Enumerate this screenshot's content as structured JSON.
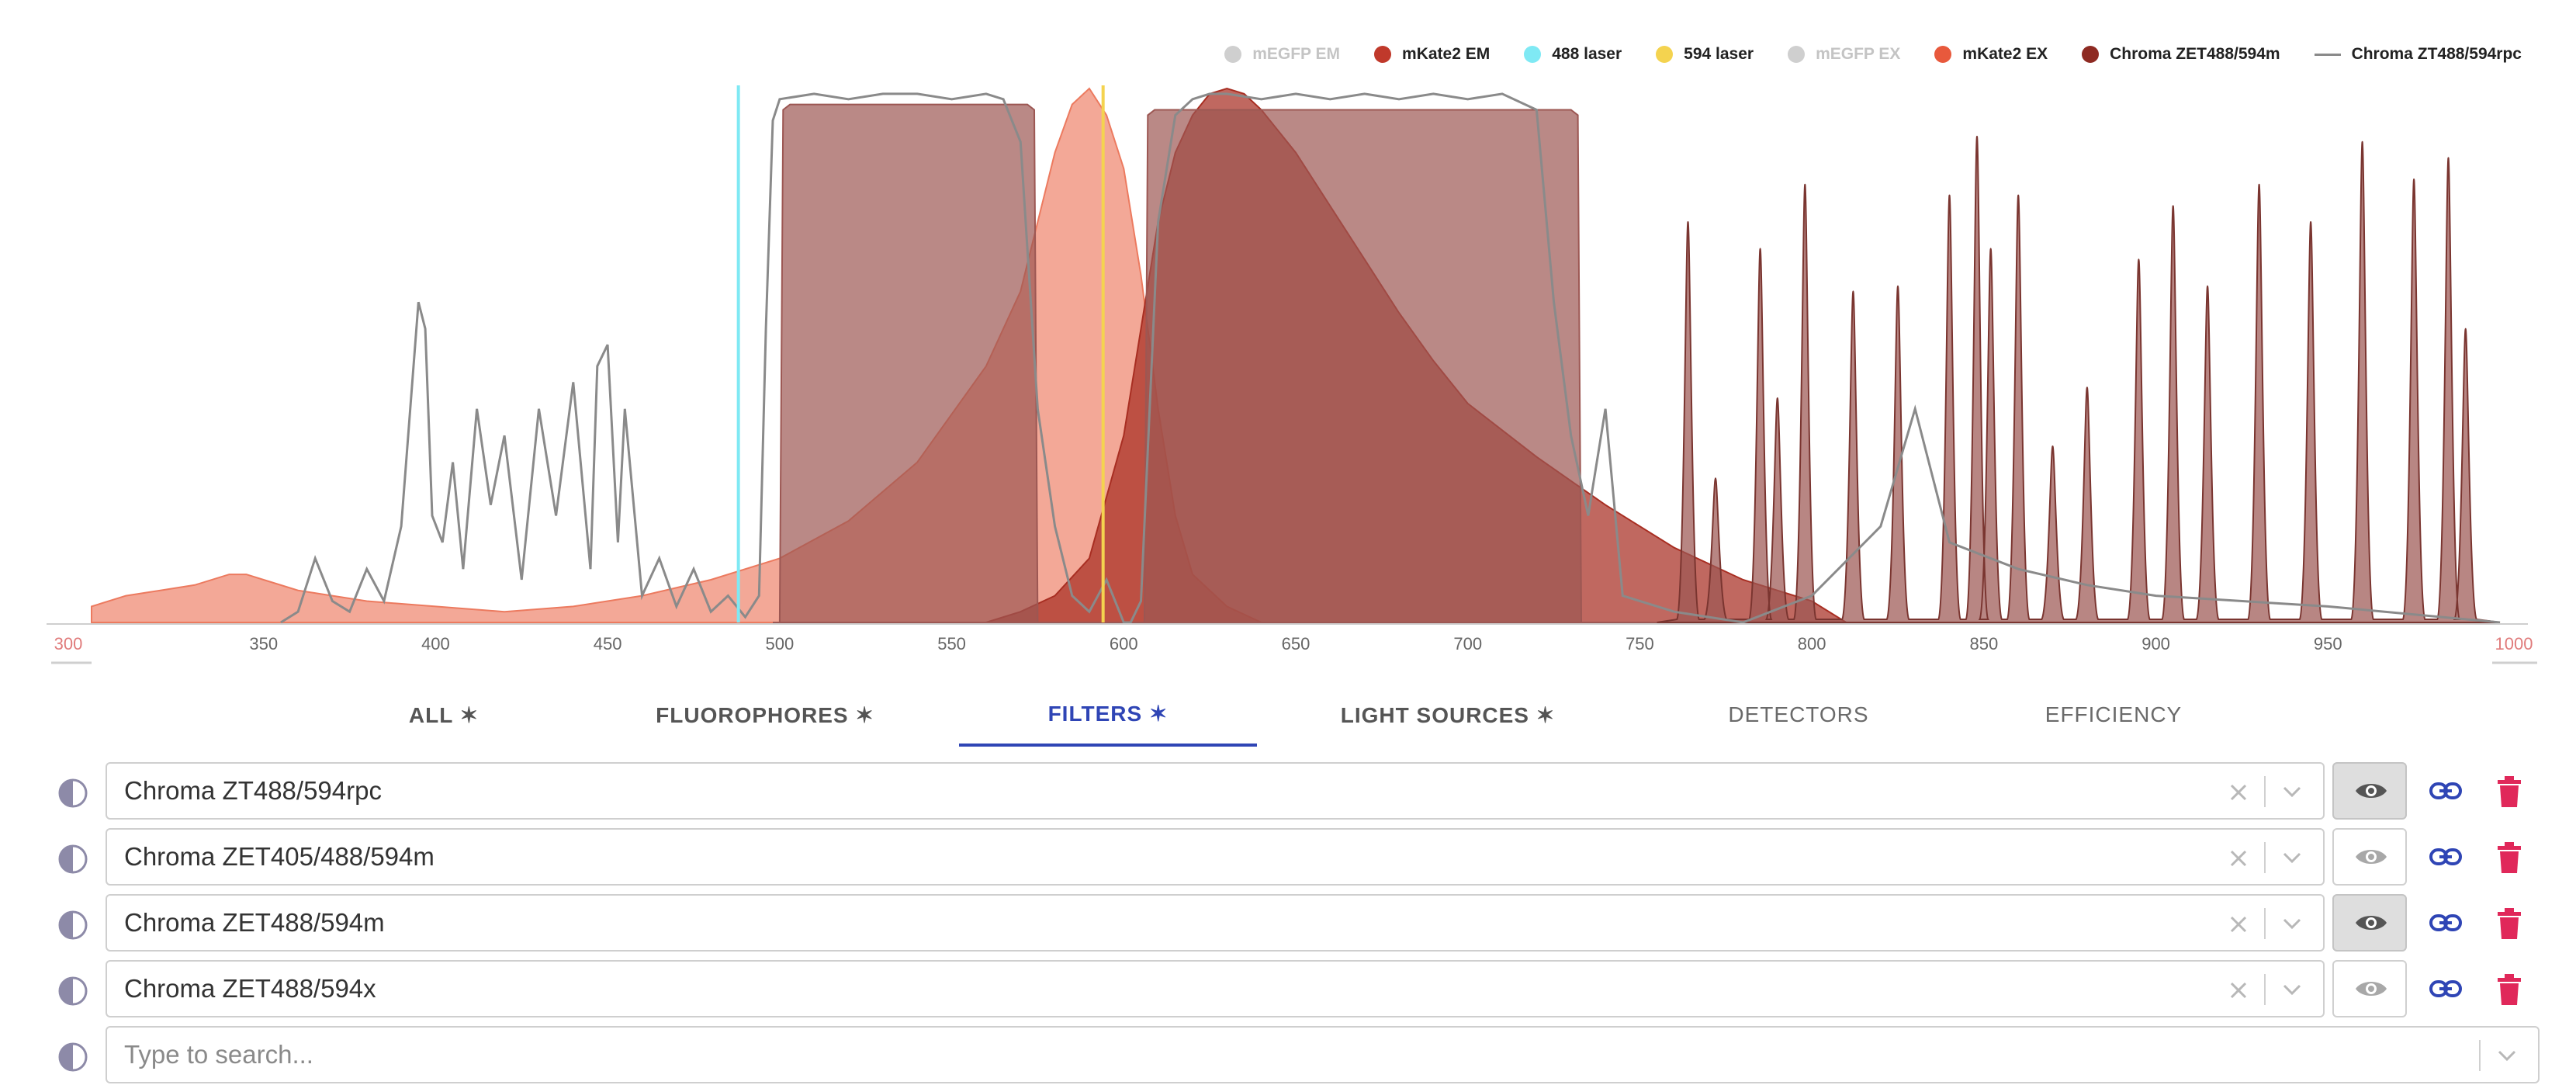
{
  "legend": [
    {
      "label": "mEGFP EM",
      "color": "#cfcfcf",
      "dim": true,
      "kind": "dot"
    },
    {
      "label": "mKate2 EM",
      "color": "#c0392b",
      "dim": false,
      "kind": "dot"
    },
    {
      "label": "488 laser",
      "color": "#7fe9f4",
      "dim": false,
      "kind": "dot"
    },
    {
      "label": "594 laser",
      "color": "#f4d34f",
      "dim": false,
      "kind": "dot"
    },
    {
      "label": "mEGFP EX",
      "color": "#cfcfcf",
      "dim": true,
      "kind": "dot"
    },
    {
      "label": "mKate2 EX",
      "color": "#e8593c",
      "dim": false,
      "kind": "dot"
    },
    {
      "label": "Chroma ZET488/594m",
      "color": "#8e2a22",
      "dim": false,
      "kind": "dot"
    },
    {
      "label": "Chroma ZT488/594rpc",
      "color": "#8a8a8a",
      "dim": false,
      "kind": "line"
    }
  ],
  "chart_data": {
    "type": "area",
    "x_range": [
      300,
      1000
    ],
    "x_min_label": "300",
    "x_max_label": "1000",
    "x_ticks": [
      "350",
      "400",
      "450",
      "500",
      "550",
      "600",
      "650",
      "700",
      "750",
      "800",
      "850",
      "900",
      "950"
    ],
    "y_range": [
      0,
      1
    ],
    "legend_position": "top-right",
    "series": [
      {
        "name": "mKate2 EX",
        "color": "#e8593c",
        "x": [
          300,
          310,
          320,
          330,
          340,
          345,
          350,
          360,
          370,
          380,
          400,
          420,
          440,
          460,
          480,
          500,
          520,
          540,
          560,
          570,
          575,
          580,
          585,
          590,
          595,
          600,
          605,
          610,
          615,
          620,
          630,
          640
        ],
        "y": [
          0.03,
          0.05,
          0.06,
          0.07,
          0.09,
          0.09,
          0.08,
          0.06,
          0.05,
          0.04,
          0.03,
          0.02,
          0.03,
          0.05,
          0.08,
          0.12,
          0.19,
          0.3,
          0.48,
          0.62,
          0.75,
          0.88,
          0.97,
          1.0,
          0.95,
          0.85,
          0.65,
          0.4,
          0.2,
          0.09,
          0.03,
          0.0
        ]
      },
      {
        "name": "mKate2 EM",
        "color": "#c0392b",
        "x": [
          560,
          570,
          580,
          590,
          600,
          605,
          610,
          615,
          620,
          625,
          630,
          635,
          640,
          650,
          660,
          670,
          680,
          690,
          700,
          720,
          740,
          760,
          780,
          800,
          810
        ],
        "y": [
          0.0,
          0.02,
          0.05,
          0.12,
          0.35,
          0.55,
          0.75,
          0.88,
          0.95,
          0.99,
          1.0,
          0.99,
          0.96,
          0.88,
          0.78,
          0.68,
          0.58,
          0.49,
          0.41,
          0.31,
          0.22,
          0.14,
          0.08,
          0.04,
          0.0
        ]
      },
      {
        "name": "Chroma ZET488/594m",
        "color": "#8e2a22",
        "x": [
          498,
          500,
          501,
          503,
          572,
          574,
          575,
          606,
          607,
          609,
          730,
          732,
          733,
          735,
          770,
          800,
          820,
          850,
          900,
          950,
          1000
        ],
        "y": [
          0.0,
          0.0,
          0.96,
          0.97,
          0.97,
          0.96,
          0.0,
          0.0,
          0.95,
          0.96,
          0.96,
          0.95,
          0.0,
          0.0,
          0.0,
          0.0,
          0.0,
          0.0,
          0.0,
          0.0,
          0.0
        ]
      },
      {
        "name": "Chroma ZT488/594rpc",
        "color": "#8a8a8a",
        "x": [
          355,
          360,
          365,
          370,
          375,
          380,
          385,
          390,
          395,
          397,
          399,
          402,
          405,
          408,
          412,
          416,
          420,
          425,
          430,
          435,
          440,
          445,
          447,
          450,
          453,
          455,
          460,
          465,
          470,
          475,
          480,
          485,
          490,
          494,
          496,
          498,
          500,
          510,
          520,
          530,
          540,
          550,
          560,
          565,
          570,
          572,
          575,
          580,
          585,
          590,
          595,
          600,
          602,
          605,
          610,
          615,
          620,
          625,
          630,
          640,
          650,
          660,
          670,
          680,
          690,
          700,
          710,
          720,
          725,
          730,
          735,
          740,
          745,
          760,
          780,
          800,
          820,
          830,
          840,
          860,
          880,
          900,
          950,
          1000
        ],
        "y": [
          0.0,
          0.02,
          0.12,
          0.04,
          0.02,
          0.1,
          0.04,
          0.18,
          0.6,
          0.55,
          0.2,
          0.15,
          0.3,
          0.1,
          0.4,
          0.22,
          0.35,
          0.08,
          0.4,
          0.2,
          0.45,
          0.1,
          0.48,
          0.52,
          0.15,
          0.4,
          0.05,
          0.12,
          0.03,
          0.1,
          0.02,
          0.05,
          0.01,
          0.05,
          0.55,
          0.94,
          0.98,
          0.99,
          0.98,
          0.99,
          0.99,
          0.98,
          0.99,
          0.98,
          0.9,
          0.7,
          0.4,
          0.18,
          0.05,
          0.02,
          0.08,
          0.0,
          0.0,
          0.04,
          0.75,
          0.95,
          0.98,
          0.99,
          0.99,
          0.98,
          0.99,
          0.98,
          0.99,
          0.98,
          0.99,
          0.98,
          0.99,
          0.96,
          0.6,
          0.35,
          0.2,
          0.4,
          0.05,
          0.02,
          0.0,
          0.05,
          0.18,
          0.4,
          0.15,
          0.1,
          0.07,
          0.05,
          0.03,
          0.0
        ]
      }
    ],
    "lines": [
      {
        "name": "488 laser",
        "x": 488,
        "color": "#7fe9f4"
      },
      {
        "name": "594 laser",
        "x": 594,
        "color": "#f4d34f"
      }
    ],
    "peaks": {
      "name": "Chroma ZET488/594m",
      "x": [
        764,
        772,
        785,
        790,
        798,
        812,
        825,
        840,
        848,
        852,
        860,
        870,
        880,
        895,
        905,
        915,
        930,
        945,
        960,
        975,
        985,
        990
      ],
      "y": [
        0.75,
        0.27,
        0.7,
        0.42,
        0.82,
        0.62,
        0.63,
        0.8,
        0.91,
        0.7,
        0.8,
        0.33,
        0.44,
        0.68,
        0.78,
        0.63,
        0.82,
        0.75,
        0.9,
        0.83,
        0.87,
        0.55
      ]
    }
  },
  "tabs": [
    {
      "label": "ALL ✶",
      "state": "bold"
    },
    {
      "label": "FLUOROPHORES ✶",
      "state": "bold"
    },
    {
      "label": "FILTERS ✶",
      "state": "active"
    },
    {
      "label": "LIGHT SOURCES ✶",
      "state": "bold"
    },
    {
      "label": "DETECTORS",
      "state": "plain"
    },
    {
      "label": "EFFICIENCY",
      "state": "plain"
    }
  ],
  "filters": [
    {
      "value": "Chroma ZT488/594rpc",
      "visible": true
    },
    {
      "value": "Chroma ZET405/488/594m",
      "visible": false
    },
    {
      "value": "Chroma ZET488/594m",
      "visible": true
    },
    {
      "value": "Chroma ZET488/594x",
      "visible": false
    }
  ],
  "search": {
    "placeholder": "Type to search..."
  },
  "colors": {
    "accent": "#2f45b5",
    "delete": "#e0285a",
    "link": "#2f45b5"
  }
}
